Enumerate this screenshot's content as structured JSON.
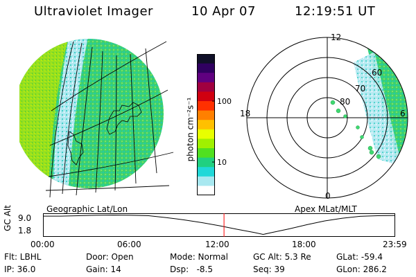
{
  "header": {
    "instrument": "Ultraviolet Imager",
    "date": "10 Apr 07",
    "time": "12:19:51 UT"
  },
  "colorbar": {
    "unit_label": "photon cm⁻²s⁻¹",
    "ticks": [
      "100",
      "10"
    ],
    "colors": [
      "#101028",
      "#300060",
      "#600080",
      "#a00040",
      "#d00010",
      "#ff3000",
      "#ff8000",
      "#ffc000",
      "#e8ff00",
      "#a0f000",
      "#50e020",
      "#20d080",
      "#20d8d8",
      "#a8e8f0",
      "#ffffff"
    ]
  },
  "left_panel": {
    "label": "Geographic Lat/Lon"
  },
  "right_panel": {
    "label": "Apex MLat/MLT",
    "lat_labels": [
      "80",
      "70",
      "60"
    ],
    "mlt_labels": {
      "top": "12",
      "left": "18",
      "right": "6",
      "bottom": "0"
    }
  },
  "gc_alt_plot": {
    "axis_label": "GC Alt",
    "y_ticks": [
      "9.0",
      "1.8"
    ],
    "x_ticks": [
      "00:00",
      "06:00",
      "12:00",
      "18:00",
      "23:59"
    ],
    "curve": [
      [
        0,
        0.93
      ],
      [
        0.05,
        0.93
      ],
      [
        0.1,
        0.95
      ],
      [
        0.15,
        0.97
      ],
      [
        0.2,
        0.98
      ],
      [
        0.25,
        0.97
      ],
      [
        0.3,
        0.95
      ],
      [
        0.35,
        0.86
      ],
      [
        0.4,
        0.75
      ],
      [
        0.45,
        0.62
      ],
      [
        0.5,
        0.47
      ],
      [
        0.55,
        0.3
      ],
      [
        0.6,
        0.14
      ],
      [
        0.625,
        0.05
      ],
      [
        0.65,
        0.14
      ],
      [
        0.7,
        0.32
      ],
      [
        0.75,
        0.52
      ],
      [
        0.8,
        0.7
      ],
      [
        0.85,
        0.83
      ],
      [
        0.9,
        0.92
      ],
      [
        0.95,
        0.95
      ],
      [
        1.0,
        0.96
      ]
    ],
    "current_time_fraction": 0.514
  },
  "info": {
    "flt": "Flt: LBHL",
    "ip": "IP: 36.0",
    "door": "Door: Open",
    "gain": "Gain: 14",
    "mode": "Mode: Normal",
    "dsp": "Dsp:   -8.5",
    "gc_alt": "GC Alt: 5.3 Re",
    "seq": "Seq: 39",
    "glat": "GLat: -59.4",
    "glon": "GLon: 286.2"
  }
}
